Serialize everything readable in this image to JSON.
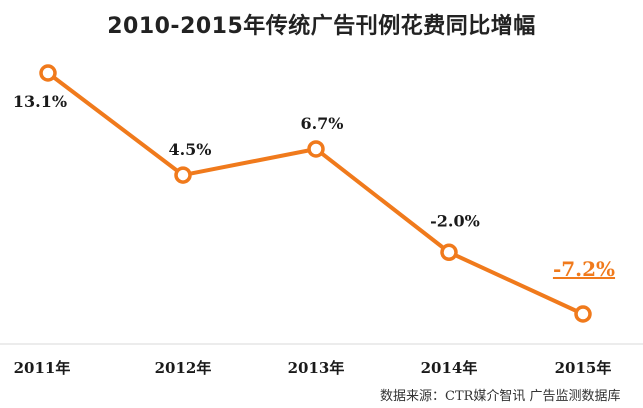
{
  "chart_data": {
    "type": "line",
    "title": "2010-2015年传统广告刊例花费同比增幅",
    "categories": [
      "2011年",
      "2012年",
      "2013年",
      "2014年",
      "2015年"
    ],
    "series": [
      {
        "values": [
          13.1,
          4.5,
          6.7,
          -2.0,
          -7.2
        ],
        "labels": [
          "13.1%",
          "4.5%",
          "6.7%",
          "-2.0%",
          "-7.2%"
        ],
        "color": "#f07a1c"
      }
    ],
    "xlabel": "",
    "ylabel": "",
    "ylim": [
      -7.2,
      13.1
    ],
    "grid": false,
    "legend": "none",
    "highlight_color": "#f07a1c",
    "source": "数据来源：CTR媒介智讯 广告监测数据库"
  }
}
